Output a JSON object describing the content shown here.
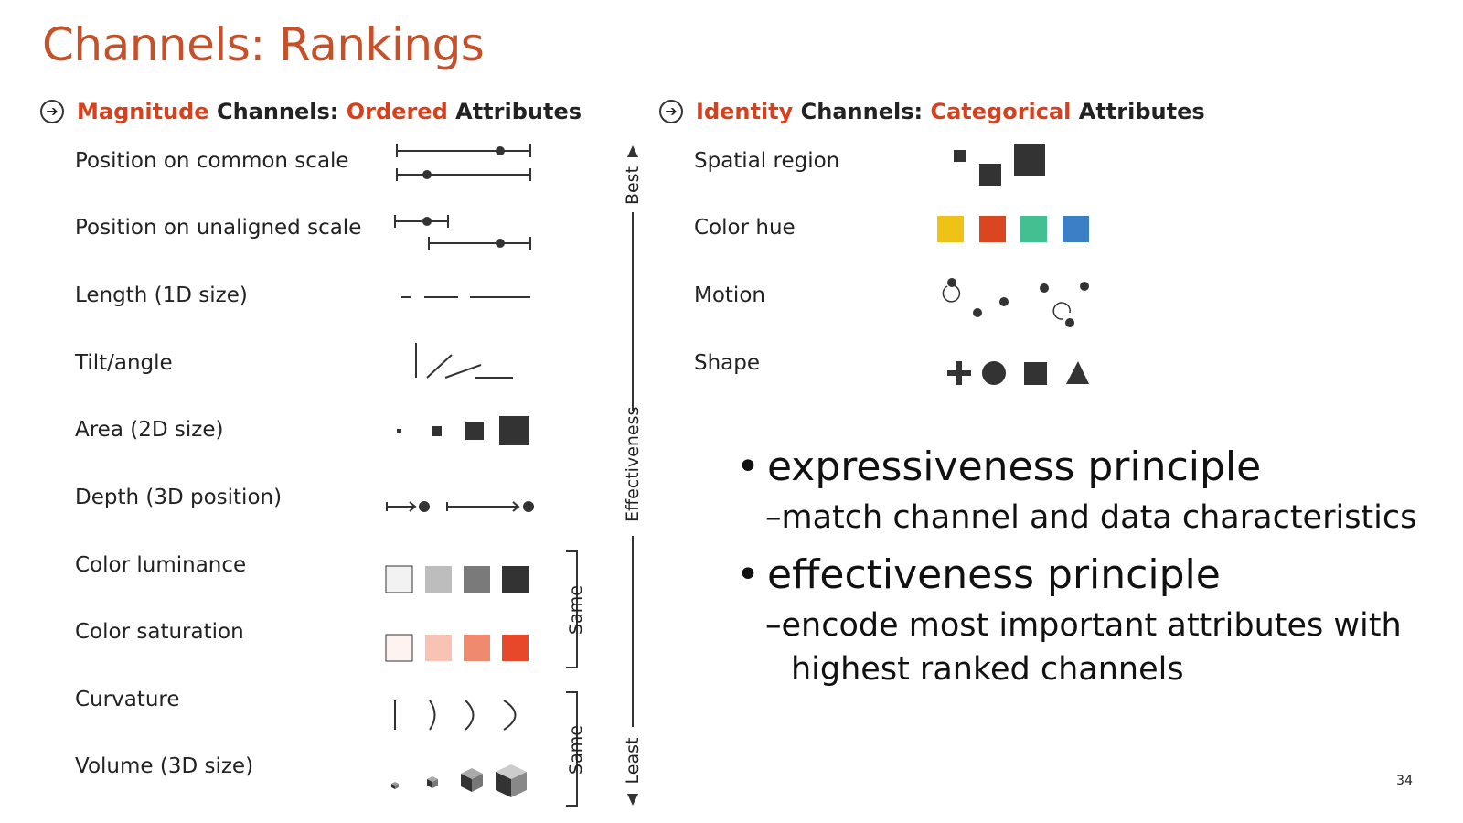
{
  "title": "Channels: Rankings",
  "magnitude": {
    "arrow_icon": "circled-arrow-icon",
    "h1": "Magnitude",
    "h2": " Channels: ",
    "h3": "Ordered",
    "h4": " Attributes",
    "rows": [
      "Position on common scale",
      "Position on unaligned scale",
      "Length (1D size)",
      "Tilt/angle",
      "Area (2D size)",
      "Depth (3D position)",
      "Color luminance",
      "Color saturation",
      "Curvature",
      "Volume (3D size)"
    ],
    "luminance_colors": [
      "#f2f2f2",
      "#bdbdbd",
      "#7a7a7a",
      "#333333"
    ],
    "saturation_colors": [
      "#fdf3f1",
      "#f8c2b5",
      "#ef8a6f",
      "#e8482a"
    ],
    "group_label_1": "Same",
    "group_label_2": "Same"
  },
  "effectiveness": {
    "top": "Best",
    "middle": "Effectiveness",
    "bottom": "Least"
  },
  "identity": {
    "arrow_icon": "circled-arrow-icon",
    "h1": "Identity",
    "h2": " Channels: ",
    "h3": "Categorical",
    "h4": " Attributes",
    "rows": [
      "Spatial region",
      "Color hue",
      "Motion",
      "Shape"
    ],
    "hue_colors": [
      "#eec216",
      "#d9461f",
      "#43c092",
      "#3d7fc6"
    ]
  },
  "bullets": {
    "p1": "expressiveness principle",
    "p1_sub": "–match channel and data characteristics",
    "p2": "effectiveness principle",
    "p2_sub": "–encode most important attributes with highest ranked channels"
  },
  "page_number": "34",
  "accent_color": "#d7401c",
  "title_color": "#c4512a"
}
